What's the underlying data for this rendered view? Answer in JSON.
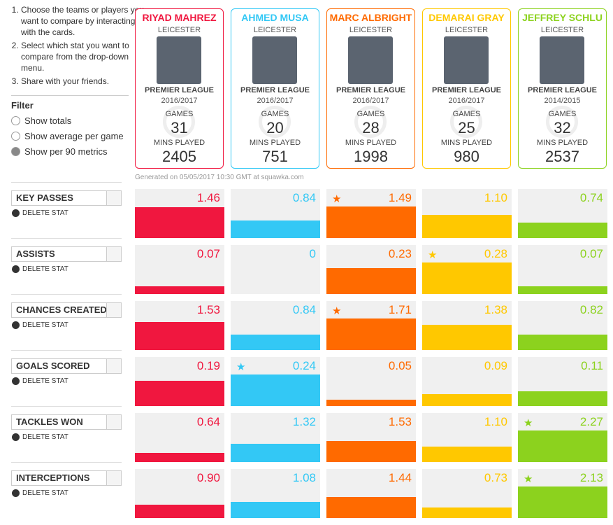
{
  "instructions": [
    "Choose the teams or players you want to compare by interacting with the cards.",
    "Select which stat you want to compare from the drop-down menu.",
    "Share with your friends."
  ],
  "filter": {
    "title": "Filter",
    "options": [
      "Show totals",
      "Show average per game",
      "Show per 90 metrics"
    ],
    "selected": 2
  },
  "players": [
    {
      "name": "RIYAD MAHREZ",
      "team": "LEICESTER",
      "league": "PREMIER LEAGUE",
      "season": "2016/2017",
      "games_label": "GAMES",
      "games": 31,
      "mins_label": "MINS PLAYED",
      "mins": 2405,
      "color": "#f0173f"
    },
    {
      "name": "AHMED MUSA",
      "team": "LEICESTER",
      "league": "PREMIER LEAGUE",
      "season": "2016/2017",
      "games_label": "GAMES",
      "games": 20,
      "mins_label": "MINS PLAYED",
      "mins": 751,
      "color": "#33c8f5"
    },
    {
      "name": "MARC ALBRIGHT",
      "team": "LEICESTER",
      "league": "PREMIER LEAGUE",
      "season": "2016/2017",
      "games_label": "GAMES",
      "games": 28,
      "mins_label": "MINS PLAYED",
      "mins": 1998,
      "color": "#ff6a00"
    },
    {
      "name": "DEMARAI GRAY",
      "team": "LEICESTER",
      "league": "PREMIER LEAGUE",
      "season": "2016/2017",
      "games_label": "GAMES",
      "games": 25,
      "mins_label": "MINS PLAYED",
      "mins": 980,
      "color": "#ffc800"
    },
    {
      "name": "JEFFREY SCHLU",
      "team": "LEICESTER",
      "league": "PREMIER LEAGUE",
      "season": "2014/2015",
      "games_label": "GAMES",
      "games": 32,
      "mins_label": "MINS PLAYED",
      "mins": 2537,
      "color": "#8cd21e"
    }
  ],
  "generated": "Generated on 05/05/2017 10:30 GMT at squawka.com",
  "delete_label": "DELETE STAT",
  "stats": [
    {
      "name": "KEY PASSES",
      "values": [
        1.46,
        0.84,
        1.49,
        1.1,
        0.74
      ],
      "value_labels": [
        "1.46",
        "0.84",
        "1.49",
        "1.10",
        "0.74"
      ]
    },
    {
      "name": "ASSISTS",
      "values": [
        0.07,
        0,
        0.23,
        0.28,
        0.07
      ],
      "value_labels": [
        "0.07",
        "0",
        "0.23",
        "0.28",
        "0.07"
      ]
    },
    {
      "name": "CHANCES CREATED",
      "values": [
        1.53,
        0.84,
        1.71,
        1.38,
        0.82
      ],
      "value_labels": [
        "1.53",
        "0.84",
        "1.71",
        "1.38",
        "0.82"
      ]
    },
    {
      "name": "GOALS SCORED",
      "values": [
        0.19,
        0.24,
        0.05,
        0.09,
        0.11
      ],
      "value_labels": [
        "0.19",
        "0.24",
        "0.05",
        "0.09",
        "0.11"
      ]
    },
    {
      "name": "TACKLES WON",
      "values": [
        0.64,
        1.32,
        1.53,
        1.1,
        2.27
      ],
      "value_labels": [
        "0.64",
        "1.32",
        "1.53",
        "1.10",
        "2.27"
      ]
    },
    {
      "name": "INTERCEPTIONS",
      "values": [
        0.9,
        1.08,
        1.44,
        0.73,
        2.13
      ],
      "value_labels": [
        "0.90",
        "1.08",
        "1.44",
        "0.73",
        "2.13"
      ]
    }
  ]
}
